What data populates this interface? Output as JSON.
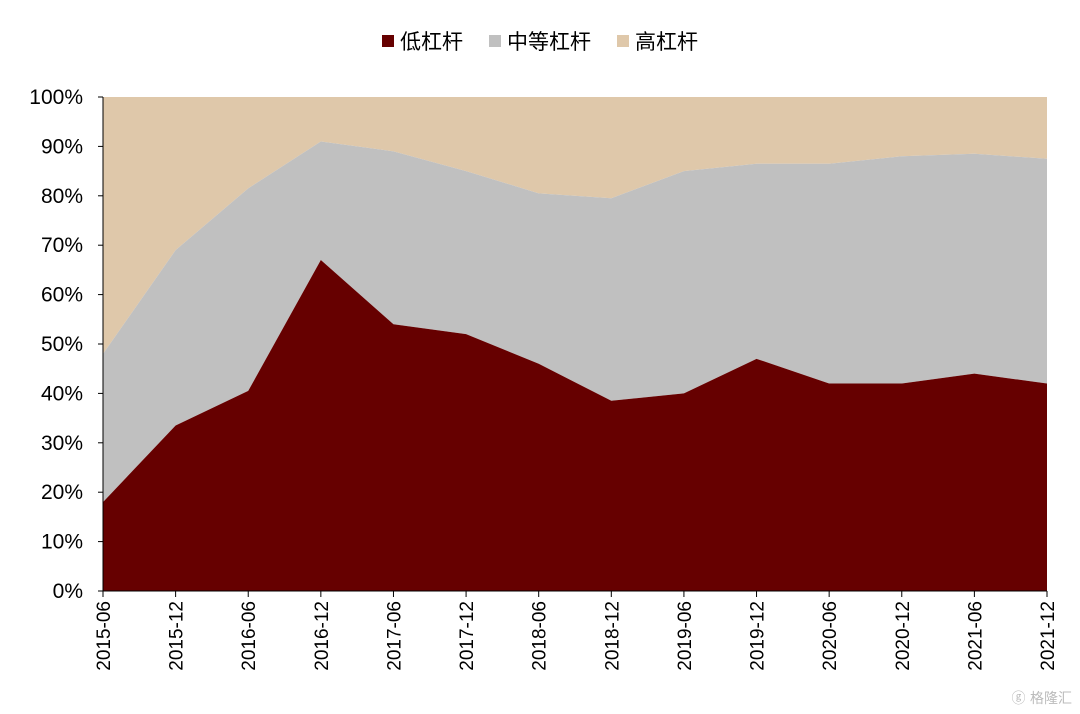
{
  "chart_data": {
    "type": "area",
    "stacked": true,
    "normalized": true,
    "categories": [
      "2015-06",
      "2015-12",
      "2016-06",
      "2016-12",
      "2017-06",
      "2017-12",
      "2018-06",
      "2018-12",
      "2019-06",
      "2019-12",
      "2020-06",
      "2020-12",
      "2021-06",
      "2021-12"
    ],
    "series": [
      {
        "name": "低杠杆",
        "color": "#660000",
        "values": [
          18,
          33.5,
          40.5,
          67,
          54,
          52,
          46,
          38.5,
          40,
          47,
          42,
          42,
          44,
          42
        ]
      },
      {
        "name": "中等杠杆",
        "color": "#c0c0c0",
        "values": [
          30,
          35.5,
          41,
          24,
          35,
          33,
          34.5,
          41,
          45,
          39.5,
          44.5,
          46,
          44.5,
          45.5
        ]
      },
      {
        "name": "高杠杆",
        "color": "#dfc8aa",
        "values": [
          52,
          31,
          18.5,
          9,
          11,
          15,
          19.5,
          20.5,
          15,
          13.5,
          13.5,
          12,
          11.5,
          12.5
        ]
      }
    ],
    "y_ticks": [
      "0%",
      "10%",
      "20%",
      "30%",
      "40%",
      "50%",
      "60%",
      "70%",
      "80%",
      "90%",
      "100%"
    ],
    "ylim": [
      0,
      100
    ],
    "legend_position": "top-center",
    "grid": false
  },
  "watermark": "格隆汇"
}
